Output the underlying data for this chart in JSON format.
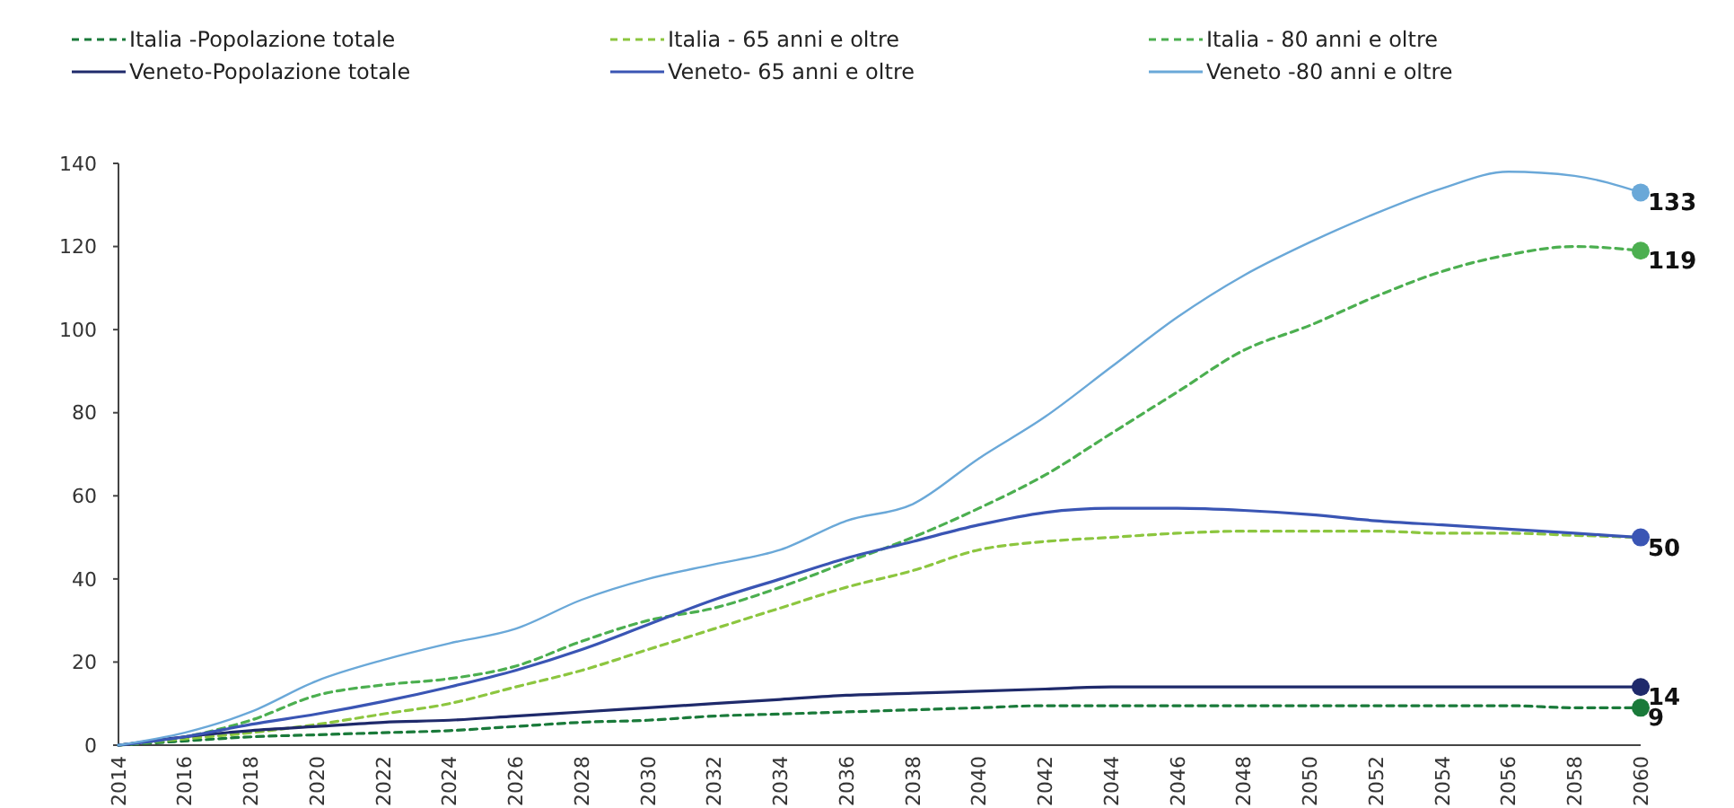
{
  "chart_data": {
    "type": "line",
    "x": [
      2014,
      2016,
      2018,
      2020,
      2022,
      2024,
      2026,
      2028,
      2030,
      2032,
      2034,
      2036,
      2038,
      2040,
      2042,
      2044,
      2046,
      2048,
      2050,
      2052,
      2054,
      2056,
      2058,
      2060
    ],
    "series": [
      {
        "name": "Italia -Popolazione totale",
        "color": "#1a7a3a",
        "line_style": "dashed",
        "values": [
          0,
          1,
          2,
          2.5,
          3,
          3.5,
          4.5,
          5.5,
          6,
          7,
          7.5,
          8,
          8.5,
          9,
          9.5,
          9.5,
          9.5,
          9.5,
          9.5,
          9.5,
          9.5,
          9.5,
          9,
          9
        ],
        "value_labels": [
          null,
          null,
          null,
          null,
          null,
          null,
          null,
          null,
          null,
          null,
          null,
          null,
          null,
          null,
          null,
          null,
          null,
          null,
          null,
          null,
          null,
          null,
          null,
          "9"
        ]
      },
      {
        "name": "Italia - 65 anni e oltre",
        "color": "#8cc63f",
        "line_style": "dashed",
        "values": [
          0,
          1.5,
          3,
          5,
          7.5,
          10,
          14,
          18,
          23,
          28,
          33,
          38,
          42,
          47,
          49,
          50,
          51,
          51.5,
          51.5,
          51.5,
          51,
          51,
          50.5,
          50
        ]
      },
      {
        "name": "Italia - 80 anni e oltre",
        "color": "#4caf50",
        "line_style": "dashed",
        "values": [
          0,
          2,
          6,
          12,
          14.5,
          16,
          19,
          25,
          30,
          33,
          38,
          44,
          50,
          57,
          65,
          75,
          85,
          95,
          101,
          108,
          114,
          118,
          120,
          119
        ],
        "value_labels": [
          null,
          null,
          null,
          null,
          null,
          null,
          null,
          null,
          null,
          null,
          null,
          null,
          null,
          null,
          null,
          null,
          null,
          null,
          null,
          null,
          null,
          null,
          null,
          "119"
        ]
      },
      {
        "name": "Veneto-Popolazione totale",
        "color": "#1f2a6b",
        "line_style": "solid",
        "values": [
          0,
          2,
          3.5,
          4.5,
          5.5,
          6,
          7,
          8,
          9,
          10,
          11,
          12,
          12.5,
          13,
          13.5,
          14,
          14,
          14,
          14,
          14,
          14,
          14,
          14,
          14
        ],
        "value_labels": [
          null,
          null,
          null,
          null,
          null,
          null,
          null,
          null,
          null,
          null,
          null,
          null,
          null,
          null,
          null,
          null,
          null,
          null,
          null,
          null,
          null,
          null,
          null,
          "14"
        ]
      },
      {
        "name": "Veneto- 65 anni e oltre",
        "color": "#3a55b4",
        "line_style": "solid",
        "values": [
          0,
          2,
          5,
          7.5,
          10.5,
          14,
          18,
          23,
          29,
          35,
          40,
          45,
          49,
          53,
          56,
          57,
          57,
          56.5,
          55.5,
          54,
          53,
          52,
          51,
          50
        ],
        "value_labels": [
          null,
          null,
          null,
          null,
          null,
          null,
          null,
          null,
          null,
          null,
          null,
          null,
          null,
          null,
          null,
          null,
          null,
          null,
          null,
          null,
          null,
          null,
          null,
          "50"
        ]
      },
      {
        "name": "Veneto -80 anni e oltre",
        "color": "#6aa8d8",
        "line_style": "solid",
        "values": [
          0,
          3,
          8,
          15.5,
          20.5,
          24.5,
          28,
          35,
          40,
          43.5,
          47,
          54,
          58,
          69,
          79,
          91,
          103,
          113,
          121,
          128,
          134,
          138,
          137,
          133
        ],
        "value_labels": [
          null,
          null,
          null,
          null,
          null,
          null,
          null,
          null,
          null,
          null,
          null,
          null,
          null,
          null,
          null,
          null,
          null,
          null,
          null,
          null,
          null,
          null,
          null,
          "133"
        ]
      }
    ],
    "xlim": [
      2014,
      2060
    ],
    "xticks": [
      2014,
      2016,
      2018,
      2020,
      2022,
      2024,
      2026,
      2028,
      2030,
      2032,
      2034,
      2036,
      2038,
      2040,
      2042,
      2044,
      2046,
      2048,
      2050,
      2052,
      2054,
      2056,
      2058,
      2060
    ],
    "ylim": [
      0,
      140
    ],
    "yticks": [
      0,
      20,
      40,
      60,
      80,
      100,
      120,
      140
    ],
    "grid": false,
    "legend": "top",
    "marker": "none"
  }
}
